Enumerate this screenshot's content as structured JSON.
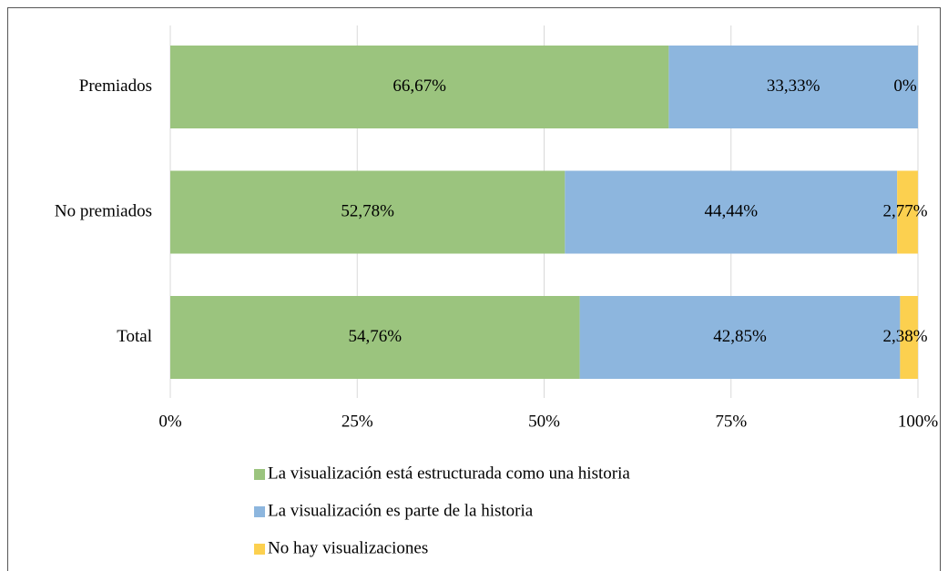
{
  "chart_data": {
    "type": "stacked-barh",
    "categories": [
      "Premiados",
      "No premiados",
      "Total"
    ],
    "series": [
      {
        "name": "La visualización está estructurada como una historia",
        "color": "#9bc47e",
        "values": [
          66.67,
          52.78,
          54.76
        ],
        "value_labels": [
          "66,67%",
          "52,78%",
          "54,76%"
        ]
      },
      {
        "name": "La visualización es parte de la historia",
        "color": "#8db6de",
        "values": [
          33.33,
          44.44,
          42.85
        ],
        "value_labels": [
          "33,33%",
          "44,44%",
          "42,85%"
        ]
      },
      {
        "name": "No hay visualizaciones",
        "color": "#fcd04f",
        "values": [
          0,
          2.77,
          2.38
        ],
        "value_labels": [
          "0%",
          "2,77%",
          "2,38%"
        ]
      }
    ],
    "xlim": [
      0,
      100
    ],
    "xticks": [
      {
        "value": 0,
        "label": "0%"
      },
      {
        "value": 25,
        "label": "25%"
      },
      {
        "value": 50,
        "label": "50%"
      },
      {
        "value": 75,
        "label": "75%"
      },
      {
        "value": 100,
        "label": "100%"
      }
    ],
    "grid": true,
    "legend": "bottom"
  }
}
